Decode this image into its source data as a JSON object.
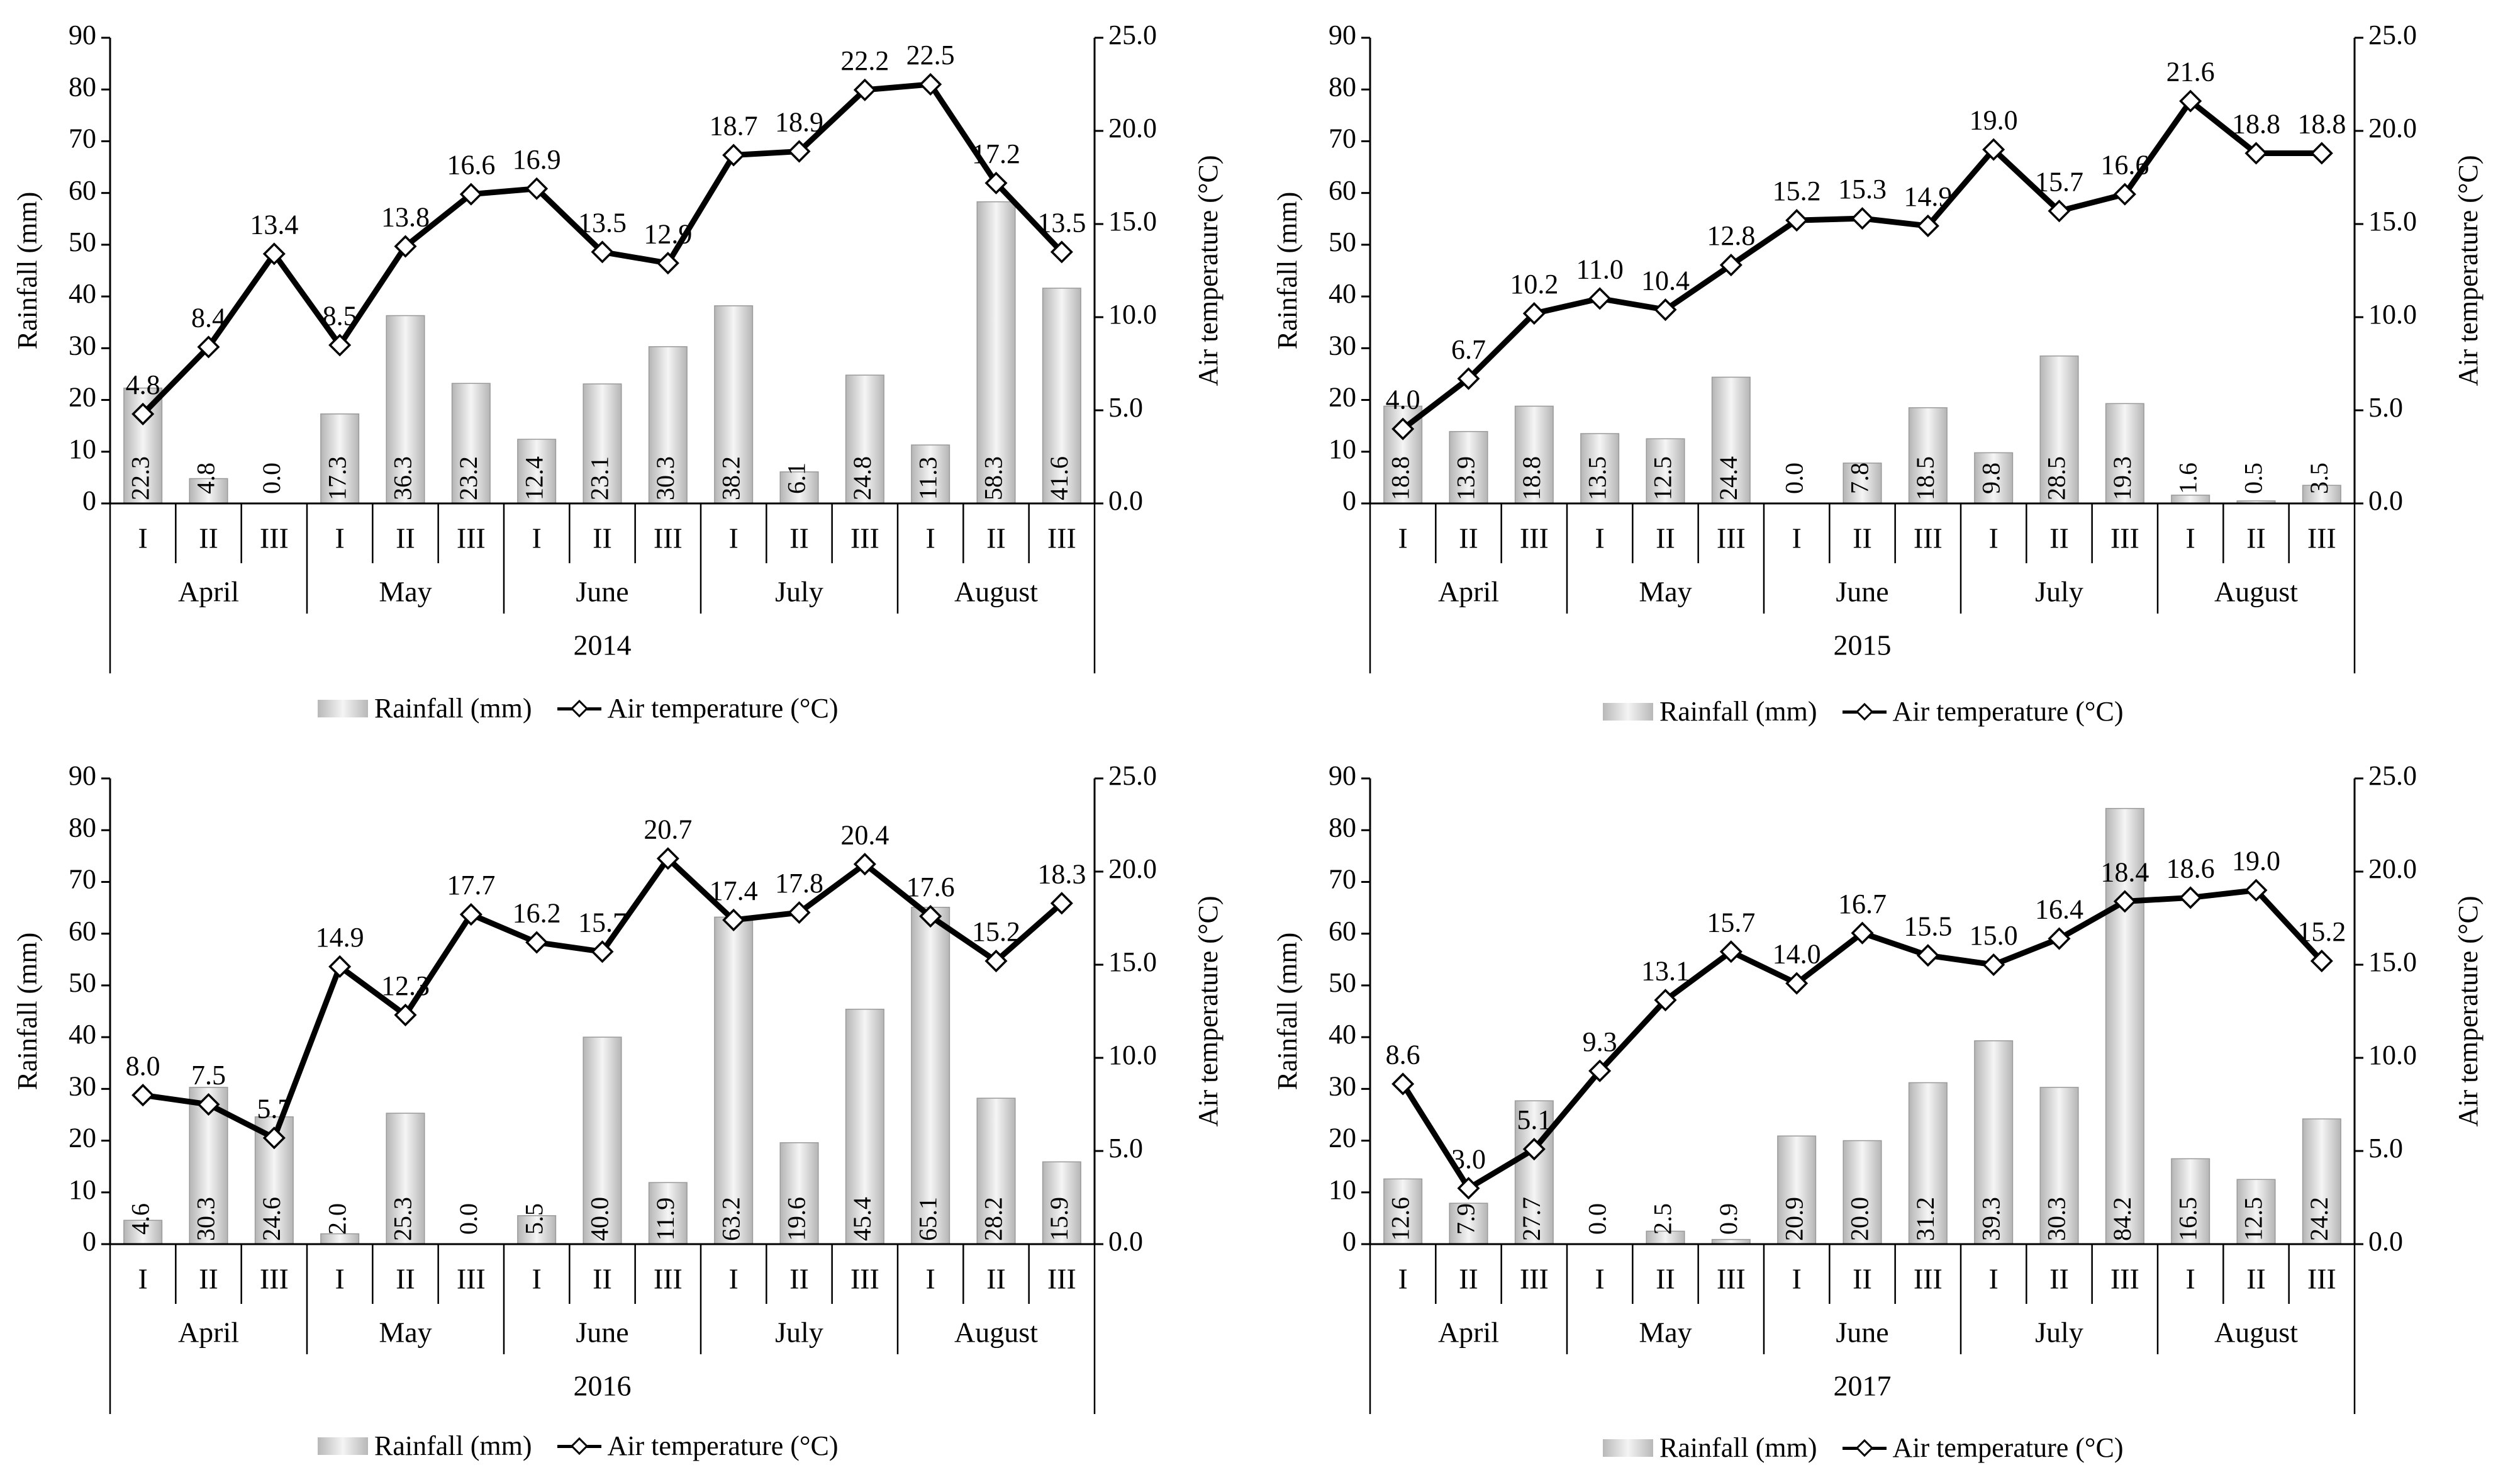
{
  "legend": {
    "rainfall": "Rainfall (mm)",
    "temperature": "Air temperature (°C)"
  },
  "colors": {
    "line": "#000000",
    "bar_dark": "#b5b5b5",
    "bar_light": "#f5f5f5"
  },
  "chart_data": [
    {
      "type": "bar",
      "year_label": "2014",
      "months": [
        "April",
        "May",
        "June",
        "July",
        "August"
      ],
      "categories": [
        "I",
        "II",
        "III",
        "I",
        "II",
        "III",
        "I",
        "II",
        "III",
        "I",
        "II",
        "III",
        "I",
        "II",
        "III"
      ],
      "ylabel": "Rainfall  (mm)",
      "y2label": "Air temperature  (°C)",
      "ylim": [
        0,
        90
      ],
      "y2lim": [
        0,
        25
      ],
      "yticks": [
        "0",
        "10",
        "20",
        "30",
        "40",
        "50",
        "60",
        "70",
        "80",
        "90"
      ],
      "y2ticks": [
        "0.0",
        "5.0",
        "10.0",
        "15.0",
        "20.0",
        "25.0"
      ],
      "series": [
        {
          "name": "Rainfall (mm)",
          "type": "bar",
          "values": [
            22.3,
            4.8,
            0.0,
            17.3,
            36.3,
            23.2,
            12.4,
            23.1,
            30.3,
            38.2,
            6.1,
            24.8,
            11.3,
            58.3,
            41.6
          ],
          "labels": [
            "22.3",
            "4.8",
            "0.0",
            "17.3",
            "36.3",
            "23.2",
            "12.4",
            "23.1",
            "30.3",
            "38.2",
            "6.1",
            "24.8",
            "11.3",
            "58.3",
            "41.6"
          ]
        },
        {
          "name": "Air temperature (°C)",
          "type": "line",
          "values": [
            4.8,
            8.4,
            13.4,
            8.5,
            13.8,
            16.6,
            16.9,
            13.5,
            12.9,
            18.7,
            18.9,
            22.2,
            22.5,
            17.2,
            13.5
          ],
          "labels": [
            "4.8",
            "8.4",
            "13.4",
            "8.5",
            "13.8",
            "16.6",
            "16.9",
            "13.5",
            "12.9",
            "18.7",
            "18.9",
            "22.2",
            "22.5",
            "17.2",
            "13.5"
          ]
        }
      ]
    },
    {
      "type": "bar",
      "year_label": "2015",
      "months": [
        "April",
        "May",
        "June",
        "July",
        "August"
      ],
      "categories": [
        "I",
        "II",
        "III",
        "I",
        "II",
        "III",
        "I",
        "II",
        "III",
        "I",
        "II",
        "III",
        "I",
        "II",
        "III"
      ],
      "ylabel": "Rainfall  (mm)",
      "y2label": "Air temperature  (°C)",
      "ylim": [
        0,
        90
      ],
      "y2lim": [
        0,
        25
      ],
      "yticks": [
        "0",
        "10",
        "20",
        "30",
        "40",
        "50",
        "60",
        "70",
        "80",
        "90"
      ],
      "y2ticks": [
        "0.0",
        "5.0",
        "10.0",
        "15.0",
        "20.0",
        "25.0"
      ],
      "series": [
        {
          "name": "Rainfall (mm)",
          "type": "bar",
          "values": [
            18.8,
            13.9,
            18.8,
            13.5,
            12.5,
            24.4,
            0.0,
            7.8,
            18.5,
            9.8,
            28.5,
            19.3,
            1.6,
            0.5,
            3.5
          ],
          "labels": [
            "18.8",
            "13.9",
            "18.8",
            "13.5",
            "12.5",
            "24.4",
            "0.0",
            "7.8",
            "18.5",
            "9.8",
            "28.5",
            "19.3",
            "1.6",
            "0.5",
            "3.5"
          ]
        },
        {
          "name": "Air temperature (°C)",
          "type": "line",
          "values": [
            4.0,
            6.7,
            10.2,
            11.0,
            10.4,
            12.8,
            15.2,
            15.3,
            14.9,
            19.0,
            15.7,
            16.6,
            21.6,
            18.8,
            18.8
          ],
          "labels": [
            "4.0",
            "6.7",
            "10.2",
            "11.0",
            "10.4",
            "12.8",
            "15.2",
            "15.3",
            "14.9",
            "19.0",
            "15.7",
            "16.6",
            "21.6",
            "18.8",
            "18.8"
          ]
        }
      ]
    },
    {
      "type": "bar",
      "year_label": "2016",
      "months": [
        "April",
        "May",
        "June",
        "July",
        "August"
      ],
      "categories": [
        "I",
        "II",
        "III",
        "I",
        "II",
        "III",
        "I",
        "II",
        "III",
        "I",
        "II",
        "III",
        "I",
        "II",
        "III"
      ],
      "ylabel": "Rainfall  (mm)",
      "y2label": "Air temperature  (°C)",
      "ylim": [
        0,
        90
      ],
      "y2lim": [
        0,
        25
      ],
      "yticks": [
        "0",
        "10",
        "20",
        "30",
        "40",
        "50",
        "60",
        "70",
        "80",
        "90"
      ],
      "y2ticks": [
        "0.0",
        "5.0",
        "10.0",
        "15.0",
        "20.0",
        "25.0"
      ],
      "series": [
        {
          "name": "Rainfall (mm)",
          "type": "bar",
          "values": [
            4.6,
            30.3,
            24.6,
            2.0,
            25.3,
            0.0,
            5.5,
            40.0,
            11.9,
            63.2,
            19.6,
            45.4,
            65.1,
            28.2,
            15.9
          ],
          "labels": [
            "4.6",
            "30.3",
            "24.6",
            "2.0",
            "25.3",
            "0.0",
            "5.5",
            "40.0",
            "11.9",
            "63.2",
            "19.6",
            "45.4",
            "65.1",
            "28.2",
            "15.9"
          ]
        },
        {
          "name": "Air temperature (°C)",
          "type": "line",
          "values": [
            8.0,
            7.5,
            5.7,
            14.9,
            12.3,
            17.7,
            16.2,
            15.7,
            20.7,
            17.4,
            17.8,
            20.4,
            17.6,
            15.2,
            18.3
          ],
          "labels": [
            "8.0",
            "7.5",
            "5.7",
            "14.9",
            "12.3",
            "17.7",
            "16.2",
            "15.7",
            "20.7",
            "17.4",
            "17.8",
            "20.4",
            "17.6",
            "15.2",
            "18.3"
          ]
        }
      ]
    },
    {
      "type": "bar",
      "year_label": "2017",
      "months": [
        "April",
        "May",
        "June",
        "July",
        "August"
      ],
      "categories": [
        "I",
        "II",
        "III",
        "I",
        "II",
        "III",
        "I",
        "II",
        "III",
        "I",
        "II",
        "III",
        "I",
        "II",
        "III"
      ],
      "ylabel": "Rainfall  (mm)",
      "y2label": "Air temperature  (°C)",
      "ylim": [
        0,
        90
      ],
      "y2lim": [
        0,
        25
      ],
      "yticks": [
        "0",
        "10",
        "20",
        "30",
        "40",
        "50",
        "60",
        "70",
        "80",
        "90"
      ],
      "y2ticks": [
        "0.0",
        "5.0",
        "10.0",
        "15.0",
        "20.0",
        "25.0"
      ],
      "series": [
        {
          "name": "Rainfall (mm)",
          "type": "bar",
          "values": [
            12.6,
            7.9,
            27.7,
            0.0,
            2.5,
            0.9,
            20.9,
            20.0,
            31.2,
            39.3,
            30.3,
            84.2,
            16.5,
            12.5,
            24.2
          ],
          "labels": [
            "12.6",
            "7.9",
            "27.7",
            "0.0",
            "2.5",
            "0.9",
            "20.9",
            "20.0",
            "31.2",
            "39.3",
            "30.3",
            "84.2",
            "16.5",
            "12.5",
            "24.2"
          ]
        },
        {
          "name": "Air temperature (°C)",
          "type": "line",
          "values": [
            8.6,
            3.0,
            5.1,
            9.3,
            13.1,
            15.7,
            14.0,
            16.7,
            15.5,
            15.0,
            16.4,
            18.4,
            18.6,
            19.0,
            15.2
          ],
          "labels": [
            "8.6",
            "3.0",
            "5.1",
            "9.3",
            "13.1",
            "15.7",
            "14.0",
            "16.7",
            "15.5",
            "15.0",
            "16.4",
            "18.4",
            "18.6",
            "19.0",
            "15.2"
          ]
        }
      ]
    }
  ]
}
